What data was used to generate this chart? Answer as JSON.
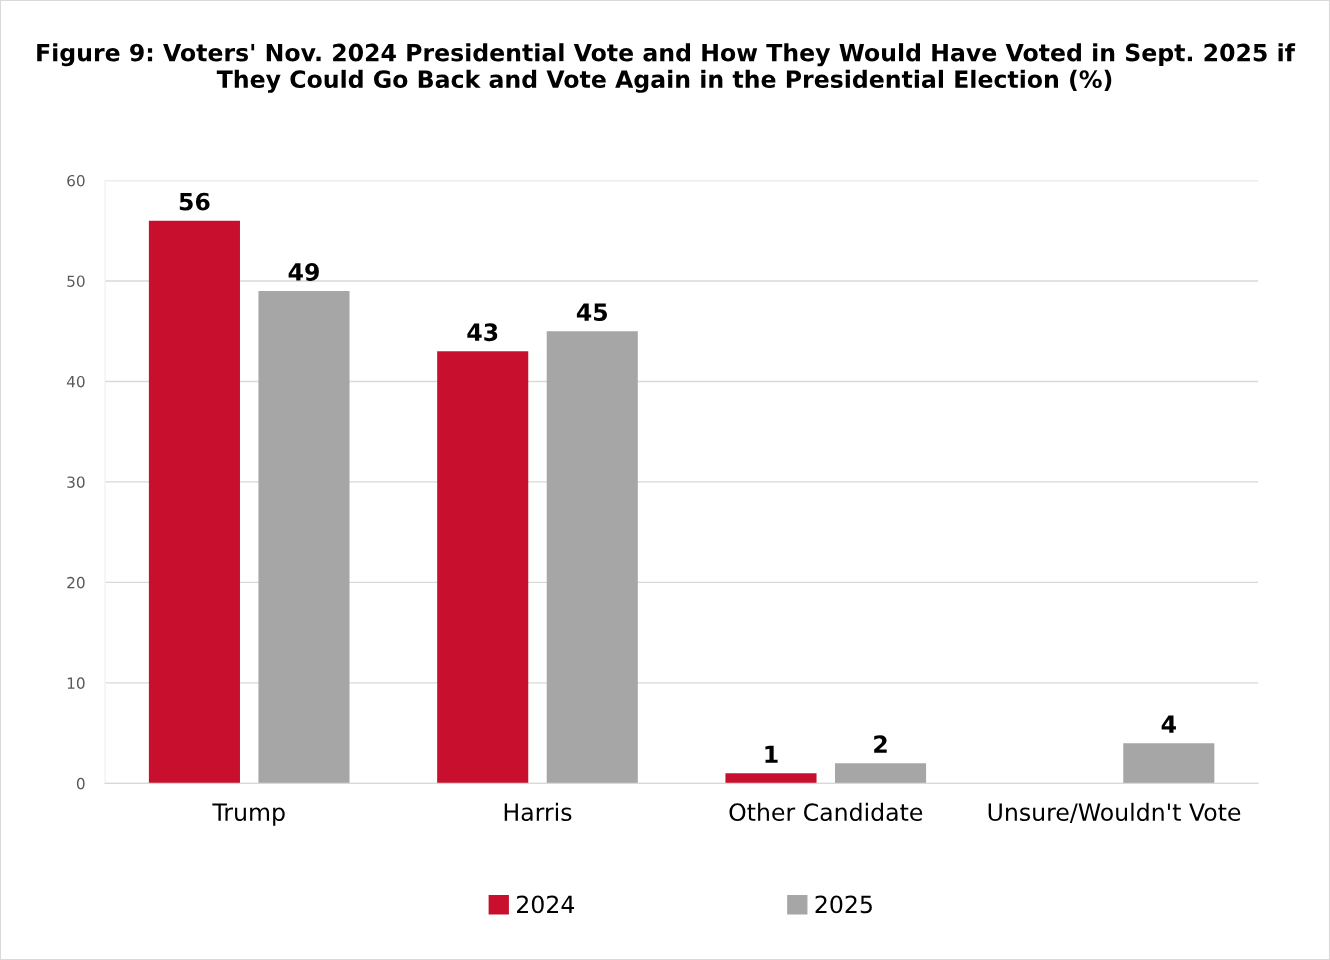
{
  "chart_data": {
    "type": "bar",
    "title": "Figure 9: Voters' Nov. 2024 Presidential Vote and How They Would Have Voted in Sept. 2025 if They Could Go Back and Vote Again in the Presidential Election (%)",
    "categories": [
      "Trump",
      "Harris",
      "Other Candidate",
      "Unsure/Wouldn't Vote"
    ],
    "series": [
      {
        "name": "2024",
        "color": "#c8102e",
        "values": [
          56,
          43,
          1,
          null
        ]
      },
      {
        "name": "2025",
        "color": "#a6a6a6",
        "values": [
          49,
          45,
          2,
          4
        ]
      }
    ],
    "ylim": [
      0,
      60
    ],
    "yticks": [
      0,
      10,
      20,
      30,
      40,
      50,
      60
    ],
    "grid": "y",
    "legend": "bottom",
    "data_labels": true
  }
}
